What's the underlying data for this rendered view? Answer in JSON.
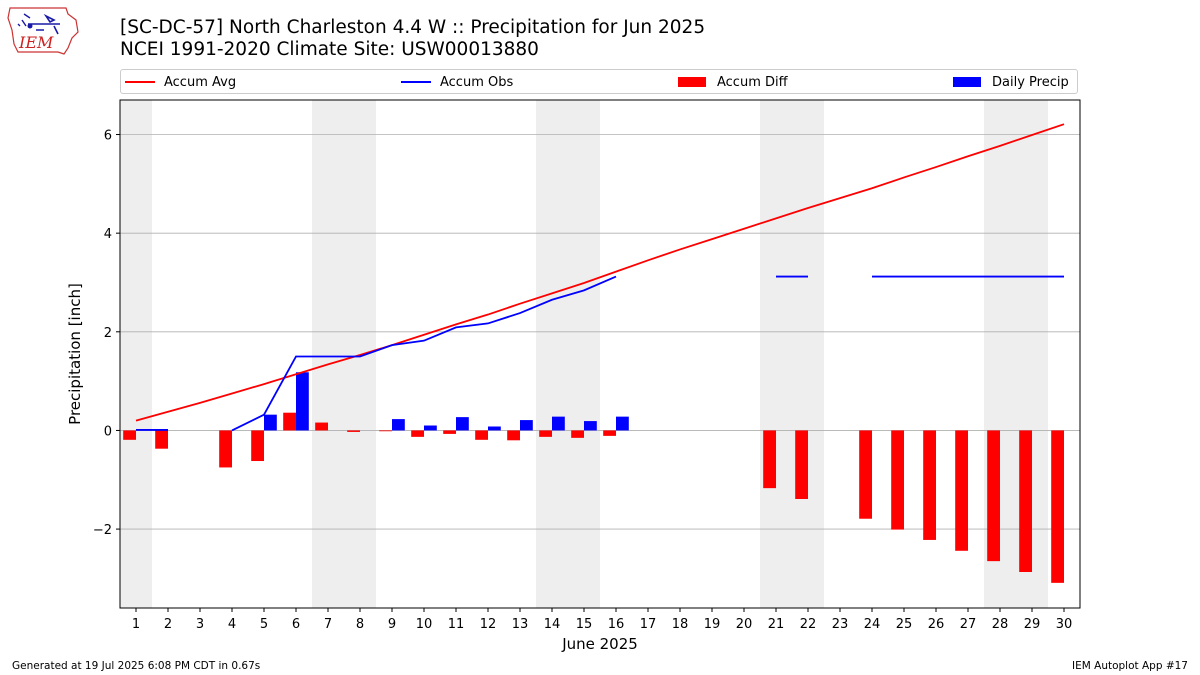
{
  "header": {
    "title": "[SC-DC-57] North Charleston 4.4 W :: Precipitation for Jun 2025",
    "subtitle": "NCEI 1991-2020 Climate Site: USW00013880"
  },
  "logo": {
    "text": "IEM",
    "colors": {
      "outline": "#cc3333",
      "text": "#cc2222",
      "icon": "#1a1aa8"
    }
  },
  "legend": [
    {
      "label": "Accum Avg",
      "kind": "line",
      "color": "#ff0000"
    },
    {
      "label": "Accum Obs",
      "kind": "line",
      "color": "#0000ff"
    },
    {
      "label": "Accum Diff",
      "kind": "bar",
      "color": "#ff0000"
    },
    {
      "label": "Daily Precip",
      "kind": "bar",
      "color": "#0000ff"
    }
  ],
  "footer": {
    "left": "Generated at 19 Jul 2025 6:08 PM CDT in 0.67s",
    "right": "IEM Autoplot App #17"
  },
  "chart_data": {
    "type": "bar",
    "xlabel": "June 2025",
    "ylabel": "Precipitation [inch]",
    "xlim": [
      0.5,
      30.5
    ],
    "ylim": [
      -3.6,
      6.7
    ],
    "x": [
      1,
      2,
      3,
      4,
      5,
      6,
      7,
      8,
      9,
      10,
      11,
      12,
      13,
      14,
      15,
      16,
      17,
      18,
      19,
      20,
      21,
      22,
      23,
      24,
      25,
      26,
      27,
      28,
      29,
      30
    ],
    "x_tick_labels": [
      "1",
      "2",
      "3",
      "4",
      "5",
      "6",
      "7",
      "8",
      "9",
      "10",
      "11",
      "12",
      "13",
      "14",
      "15",
      "16",
      "17",
      "18",
      "19",
      "20",
      "21",
      "22",
      "23",
      "24",
      "25",
      "26",
      "27",
      "28",
      "29",
      "30"
    ],
    "y_ticks": [
      -2,
      0,
      2,
      4,
      6
    ],
    "y_tick_labels": [
      "−2",
      "0",
      "2",
      "4",
      "6"
    ],
    "grid": "horizontal",
    "legend_position": "top",
    "weekend_bands": [
      [
        0.5,
        1.5
      ],
      [
        6.5,
        8.5
      ],
      [
        13.5,
        15.5
      ],
      [
        20.5,
        22.5
      ],
      [
        27.5,
        29.5
      ]
    ],
    "colors": {
      "avg": "#ff0000",
      "obs": "#0000ff",
      "diff": "#ff0000",
      "daily": "#0000ff",
      "weekend": "#eeeeee",
      "grid": "#b0b0b0"
    },
    "series": [
      {
        "name": "Accum Avg",
        "kind": "line",
        "values": [
          0.2,
          0.38,
          0.56,
          0.75,
          0.94,
          1.14,
          1.34,
          1.53,
          1.73,
          1.94,
          2.15,
          2.35,
          2.57,
          2.78,
          2.99,
          3.22,
          3.45,
          3.67,
          3.88,
          4.09,
          4.3,
          4.51,
          4.71,
          4.91,
          5.13,
          5.34,
          5.56,
          5.77,
          5.99,
          6.21
        ]
      },
      {
        "name": "Accum Obs",
        "kind": "line",
        "values": [
          0.01,
          0.01,
          null,
          0.0,
          0.32,
          1.5,
          1.5,
          1.5,
          1.73,
          1.82,
          2.09,
          2.17,
          2.38,
          2.65,
          2.84,
          3.12,
          null,
          null,
          null,
          null,
          3.12,
          3.12,
          null,
          3.12,
          3.12,
          3.12,
          3.12,
          3.12,
          3.12,
          3.12
        ]
      },
      {
        "name": "Accum Diff",
        "kind": "bar",
        "values": [
          -0.19,
          -0.37,
          null,
          -0.75,
          -0.62,
          0.36,
          0.16,
          -0.03,
          -0.01,
          -0.13,
          -0.07,
          -0.19,
          -0.2,
          -0.13,
          -0.15,
          -0.11,
          null,
          null,
          null,
          null,
          -1.17,
          -1.39,
          null,
          -1.79,
          -2.01,
          -2.22,
          -2.44,
          -2.65,
          -2.87,
          -3.09
        ]
      },
      {
        "name": "Daily Precip",
        "kind": "bar",
        "values": [
          0.0,
          0.0,
          null,
          0.0,
          0.32,
          1.18,
          0.0,
          0.0,
          0.23,
          0.1,
          0.27,
          0.08,
          0.21,
          0.28,
          0.19,
          0.28,
          null,
          null,
          null,
          null,
          0.0,
          0.0,
          null,
          0.0,
          0.0,
          0.0,
          0.0,
          0.0,
          0.0,
          0.0
        ]
      }
    ]
  }
}
